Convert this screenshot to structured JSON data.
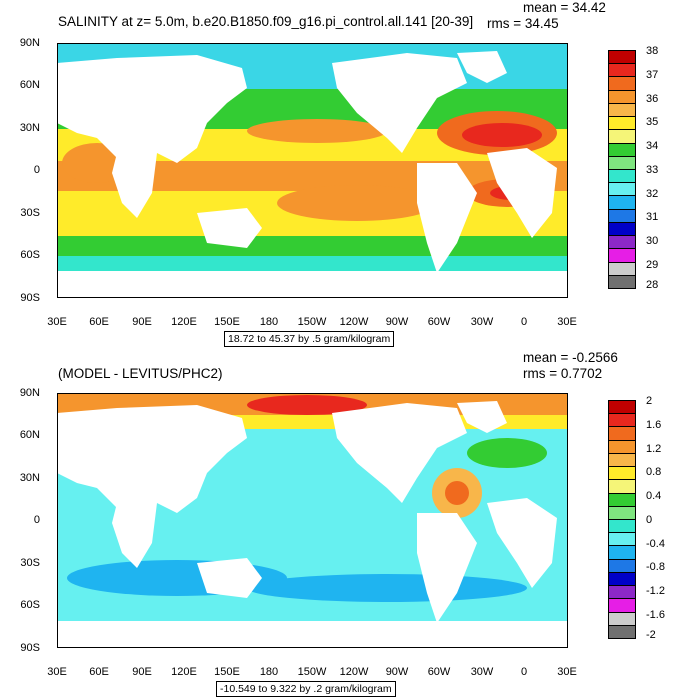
{
  "top": {
    "title": "SALINITY at z=    5.0m, b.e20.B1850.f09_g16.pi_control.all.141 [20-39]",
    "mean": "mean = 34.42",
    "rms": "rms = 34.45",
    "range_label": "18.72 to 45.37 by .5 gram/kilogram",
    "lat_labels": [
      "90N",
      "60N",
      "30N",
      "0",
      "30S",
      "60S",
      "90S"
    ],
    "lon_labels": [
      "30E",
      "60E",
      "90E",
      "120E",
      "150E",
      "180",
      "150W",
      "120W",
      "90W",
      "60W",
      "30W",
      "0",
      "30E"
    ],
    "colorbar_labels": [
      "38",
      "37",
      "36",
      "35",
      "34",
      "33",
      "32",
      "31",
      "30",
      "29",
      "28"
    ],
    "colorbar_colors": [
      "#c00000",
      "#e8281e",
      "#f06a1e",
      "#f5952d",
      "#f8b64a",
      "#ffeb2a",
      "#f5f578",
      "#33cc33",
      "#7fe57f",
      "#33e6cc",
      "#66f0f0",
      "#1fb4f0",
      "#1e78e6",
      "#0000c8",
      "#8c28c8",
      "#e61ee6",
      "#cccccc",
      "#707070"
    ]
  },
  "bottom": {
    "title": "(MODEL - LEVITUS/PHC2)",
    "mean": "mean = -0.2566",
    "rms": "rms = 0.7702",
    "range_label": "-10.549 to 9.322 by .2 gram/kilogram",
    "lat_labels": [
      "90N",
      "60N",
      "30N",
      "0",
      "30S",
      "60S",
      "90S"
    ],
    "lon_labels": [
      "30E",
      "60E",
      "90E",
      "120E",
      "150E",
      "180",
      "150W",
      "120W",
      "90W",
      "60W",
      "30W",
      "0",
      "30E"
    ],
    "colorbar_labels": [
      "2",
      "1.6",
      "1.2",
      "0.8",
      "0.4",
      "0",
      "-0.4",
      "-0.8",
      "-1.2",
      "-1.6",
      "-2"
    ],
    "colorbar_colors": [
      "#c00000",
      "#e8281e",
      "#f06a1e",
      "#f5952d",
      "#f8b64a",
      "#ffeb2a",
      "#f5f578",
      "#33cc33",
      "#7fe57f",
      "#33e6cc",
      "#66f0f0",
      "#1fb4f0",
      "#1e78e6",
      "#0000c8",
      "#8c28c8",
      "#e61ee6",
      "#cccccc",
      "#707070"
    ]
  }
}
